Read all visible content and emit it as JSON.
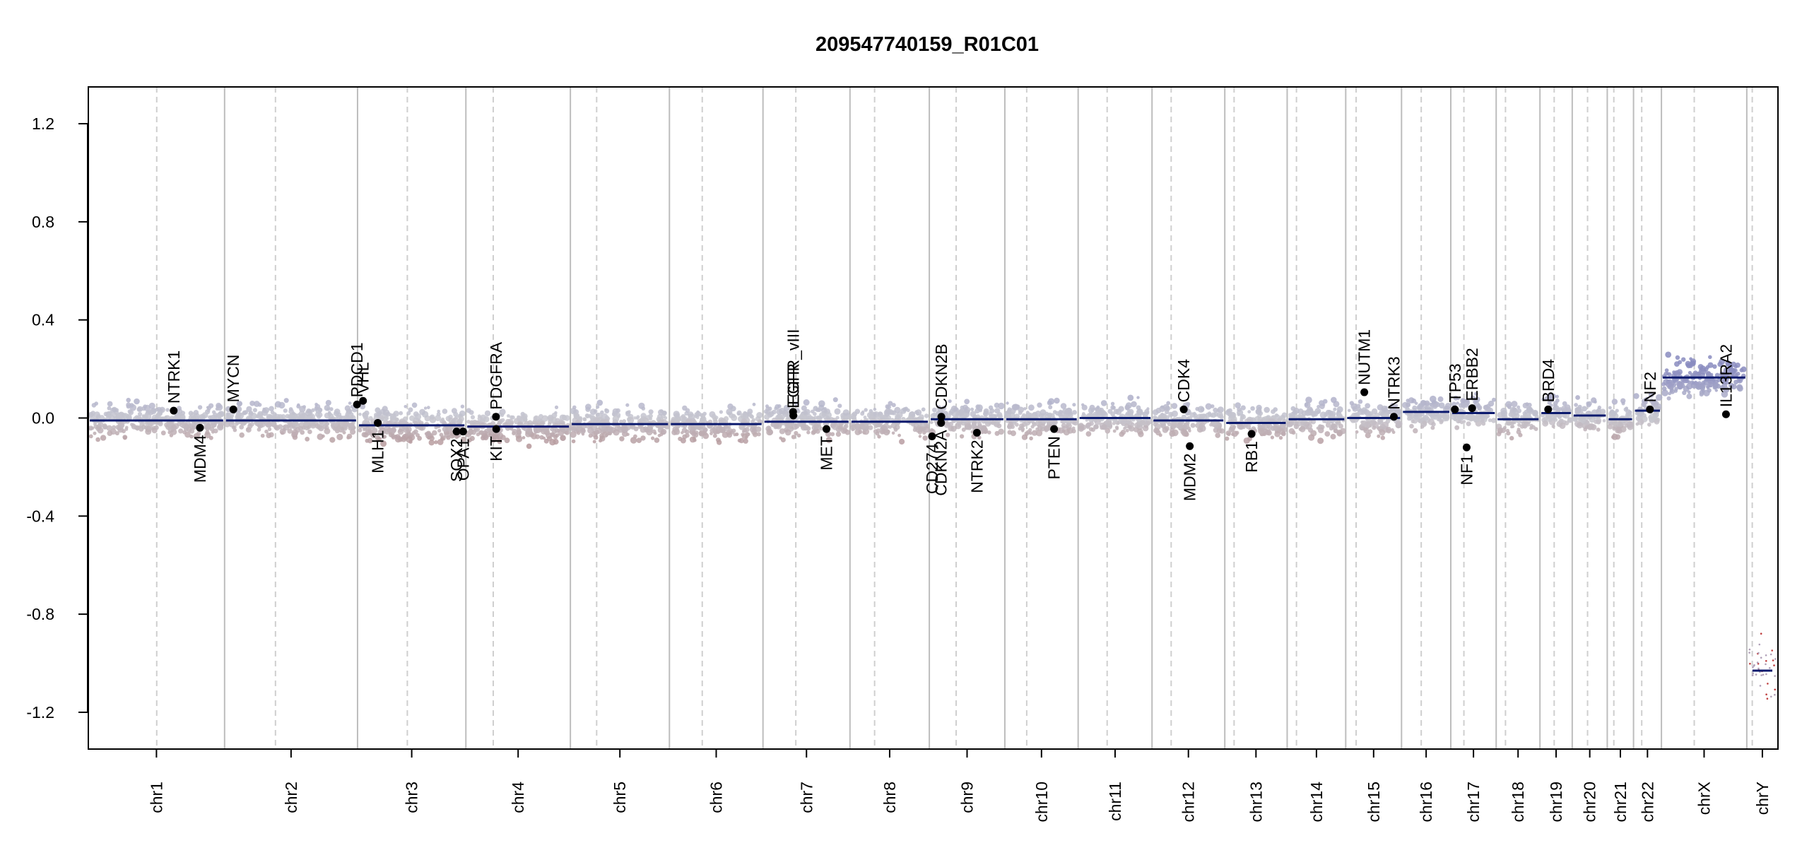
{
  "chart_data": {
    "type": "scatter",
    "title": "209547740159_R01C01",
    "xlabel": "",
    "ylabel": "",
    "ylim": [
      -1.35,
      1.35
    ],
    "y_ticks": [
      "-1.2",
      "-0.8",
      "-0.4",
      "0.0",
      "0.4",
      "0.8",
      "1.2"
    ],
    "grid": "chromosome and arm boundaries",
    "colors": {
      "gain": "#8a8cc0",
      "neutral": "#c7c7d0",
      "loss": "#b08888",
      "segment": "#0b1a6e",
      "gene_point": "#000000",
      "chr_boundary": "#bdbdbd",
      "centromere": "#cfcfcf"
    },
    "chromosomes": [
      {
        "name": "chr1",
        "len": 249,
        "cen": 125,
        "seg": -0.01
      },
      {
        "name": "chr2",
        "len": 243,
        "cen": 93,
        "seg": -0.01
      },
      {
        "name": "chr3",
        "len": 198,
        "cen": 91,
        "seg": -0.03
      },
      {
        "name": "chr4",
        "len": 191,
        "cen": 50,
        "seg": -0.035
      },
      {
        "name": "chr5",
        "len": 181,
        "cen": 48,
        "seg": -0.025
      },
      {
        "name": "chr6",
        "len": 171,
        "cen": 60,
        "seg": -0.025
      },
      {
        "name": "chr7",
        "len": 159,
        "cen": 60,
        "seg": -0.015
      },
      {
        "name": "chr8",
        "len": 145,
        "cen": 45,
        "seg": -0.015
      },
      {
        "name": "chr9",
        "len": 138,
        "cen": 49,
        "seg": -0.005
      },
      {
        "name": "chr10",
        "len": 134,
        "cen": 40,
        "seg": -0.005
      },
      {
        "name": "chr11",
        "len": 135,
        "cen": 53,
        "seg": 0.0
      },
      {
        "name": "chr12",
        "len": 133,
        "cen": 35,
        "seg": -0.01
      },
      {
        "name": "chr13",
        "len": 114,
        "cen": 17,
        "seg": -0.02
      },
      {
        "name": "chr14",
        "len": 107,
        "cen": 17,
        "seg": -0.005
      },
      {
        "name": "chr15",
        "len": 102,
        "cen": 19,
        "seg": 0.0
      },
      {
        "name": "chr16",
        "len": 90,
        "cen": 36,
        "seg": 0.025
      },
      {
        "name": "chr17",
        "len": 83,
        "cen": 24,
        "seg": 0.02
      },
      {
        "name": "chr18",
        "len": 80,
        "cen": 17,
        "seg": -0.005
      },
      {
        "name": "chr19",
        "len": 59,
        "cen": 26,
        "seg": 0.02
      },
      {
        "name": "chr20",
        "len": 64,
        "cen": 28,
        "seg": 0.01
      },
      {
        "name": "chr21",
        "len": 48,
        "cen": 12,
        "seg": -0.005
      },
      {
        "name": "chr22",
        "len": 51,
        "cen": 15,
        "seg": 0.03
      },
      {
        "name": "chrX",
        "len": 156,
        "cen": 60,
        "seg": 0.165
      },
      {
        "name": "chrY",
        "len": 57,
        "cen": 10,
        "seg": -1.03
      }
    ],
    "genes": [
      {
        "name": "NTRK1",
        "chr": "chr1",
        "pos": 156,
        "y": 0.03,
        "side": "up"
      },
      {
        "name": "MDM4",
        "chr": "chr1",
        "pos": 204,
        "y": -0.04,
        "side": "down"
      },
      {
        "name": "MYCN",
        "chr": "chr2",
        "pos": 16,
        "y": 0.035,
        "side": "up"
      },
      {
        "name": "PDCD1",
        "chr": "chr2",
        "pos": 242,
        "y": 0.055,
        "side": "up"
      },
      {
        "name": "VHL",
        "chr": "chr3",
        "pos": 10,
        "y": 0.07,
        "side": "up"
      },
      {
        "name": "MLH1",
        "chr": "chr3",
        "pos": 37,
        "y": -0.02,
        "side": "down"
      },
      {
        "name": "SOX2",
        "chr": "chr3",
        "pos": 181,
        "y": -0.055,
        "side": "down"
      },
      {
        "name": "OPA1",
        "chr": "chr3",
        "pos": 193,
        "y": -0.055,
        "side": "down"
      },
      {
        "name": "PDGFRA",
        "chr": "chr4",
        "pos": 55,
        "y": 0.005,
        "side": "up"
      },
      {
        "name": "KIT",
        "chr": "chr4",
        "pos": 55.5,
        "y": -0.045,
        "side": "down"
      },
      {
        "name": "EGFR_vIII",
        "chr": "chr7",
        "pos": 55,
        "y": 0.025,
        "side": "up"
      },
      {
        "name": "EGFR",
        "chr": "chr7",
        "pos": 55.5,
        "y": 0.01,
        "side": "up"
      },
      {
        "name": "MET",
        "chr": "chr7",
        "pos": 116,
        "y": -0.045,
        "side": "down"
      },
      {
        "name": "CD274",
        "chr": "chr9",
        "pos": 5,
        "y": -0.075,
        "side": "down"
      },
      {
        "name": "CDKN2A",
        "chr": "chr9",
        "pos": 21.5,
        "y": -0.02,
        "side": "down"
      },
      {
        "name": "CDKN2B",
        "chr": "chr9",
        "pos": 22,
        "y": 0.005,
        "side": "up"
      },
      {
        "name": "NTRK2",
        "chr": "chr9",
        "pos": 87,
        "y": -0.06,
        "side": "down"
      },
      {
        "name": "PTEN",
        "chr": "chr10",
        "pos": 90,
        "y": -0.045,
        "side": "down"
      },
      {
        "name": "CDK4",
        "chr": "chr12",
        "pos": 58,
        "y": 0.035,
        "side": "up"
      },
      {
        "name": "MDM2",
        "chr": "chr12",
        "pos": 69,
        "y": -0.115,
        "side": "down"
      },
      {
        "name": "RB1",
        "chr": "chr13",
        "pos": 49,
        "y": -0.065,
        "side": "down"
      },
      {
        "name": "NUTM1",
        "chr": "chr15",
        "pos": 34,
        "y": 0.105,
        "side": "up"
      },
      {
        "name": "NTRK3",
        "chr": "chr15",
        "pos": 88,
        "y": 0.005,
        "side": "up"
      },
      {
        "name": "TP53",
        "chr": "chr17",
        "pos": 7.5,
        "y": 0.035,
        "side": "up"
      },
      {
        "name": "NF1",
        "chr": "chr17",
        "pos": 29,
        "y": -0.12,
        "side": "down"
      },
      {
        "name": "ERBB2",
        "chr": "chr17",
        "pos": 39,
        "y": 0.04,
        "side": "up"
      },
      {
        "name": "BRD4",
        "chr": "chr19",
        "pos": 15,
        "y": 0.035,
        "side": "up"
      },
      {
        "name": "NF2",
        "chr": "chr22",
        "pos": 30,
        "y": 0.035,
        "side": "up"
      },
      {
        "name": "IL13RA2",
        "chr": "chrX",
        "pos": 118,
        "y": 0.015,
        "side": "up"
      }
    ]
  }
}
